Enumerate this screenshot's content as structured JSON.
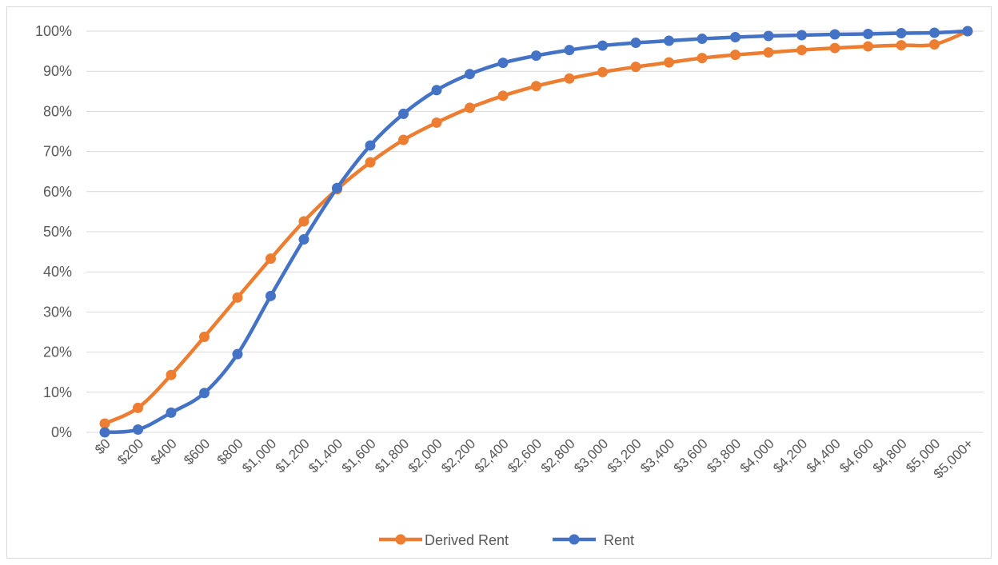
{
  "chart_data": {
    "type": "line",
    "title": "",
    "xlabel": "",
    "ylabel": "",
    "ylim": [
      0,
      1
    ],
    "y_ticks": [
      "0%",
      "10%",
      "20%",
      "30%",
      "40%",
      "50%",
      "60%",
      "70%",
      "80%",
      "90%",
      "100%"
    ],
    "categories": [
      "$0",
      "$200",
      "$400",
      "$600",
      "$800",
      "$1,000",
      "$1,200",
      "$1,400",
      "$1,600",
      "$1,800",
      "$2,000",
      "$2,200",
      "$2,400",
      "$2,600",
      "$2,800",
      "$3,000",
      "$3,200",
      "$3,400",
      "$3,600",
      "$3,800",
      "$4,000",
      "$4,200",
      "$4,400",
      "$4,600",
      "$4,800",
      "$5,000",
      "$5,000+"
    ],
    "series": [
      {
        "name": "Derived Rent",
        "color": "#ED7D31",
        "values": [
          0.022,
          0.061,
          0.143,
          0.238,
          0.336,
          0.433,
          0.526,
          0.606,
          0.673,
          0.729,
          0.772,
          0.809,
          0.839,
          0.863,
          0.882,
          0.898,
          0.911,
          0.922,
          0.933,
          0.941,
          0.947,
          0.953,
          0.958,
          0.962,
          0.965,
          0.967,
          1.0
        ]
      },
      {
        "name": "Rent",
        "color": "#4472C4",
        "values": [
          0.0,
          0.007,
          0.049,
          0.098,
          0.195,
          0.34,
          0.481,
          0.609,
          0.715,
          0.794,
          0.853,
          0.893,
          0.921,
          0.939,
          0.953,
          0.964,
          0.971,
          0.976,
          0.981,
          0.985,
          0.988,
          0.99,
          0.992,
          0.993,
          0.995,
          0.996,
          1.0
        ]
      }
    ],
    "grid": true,
    "legend_position": "bottom"
  }
}
